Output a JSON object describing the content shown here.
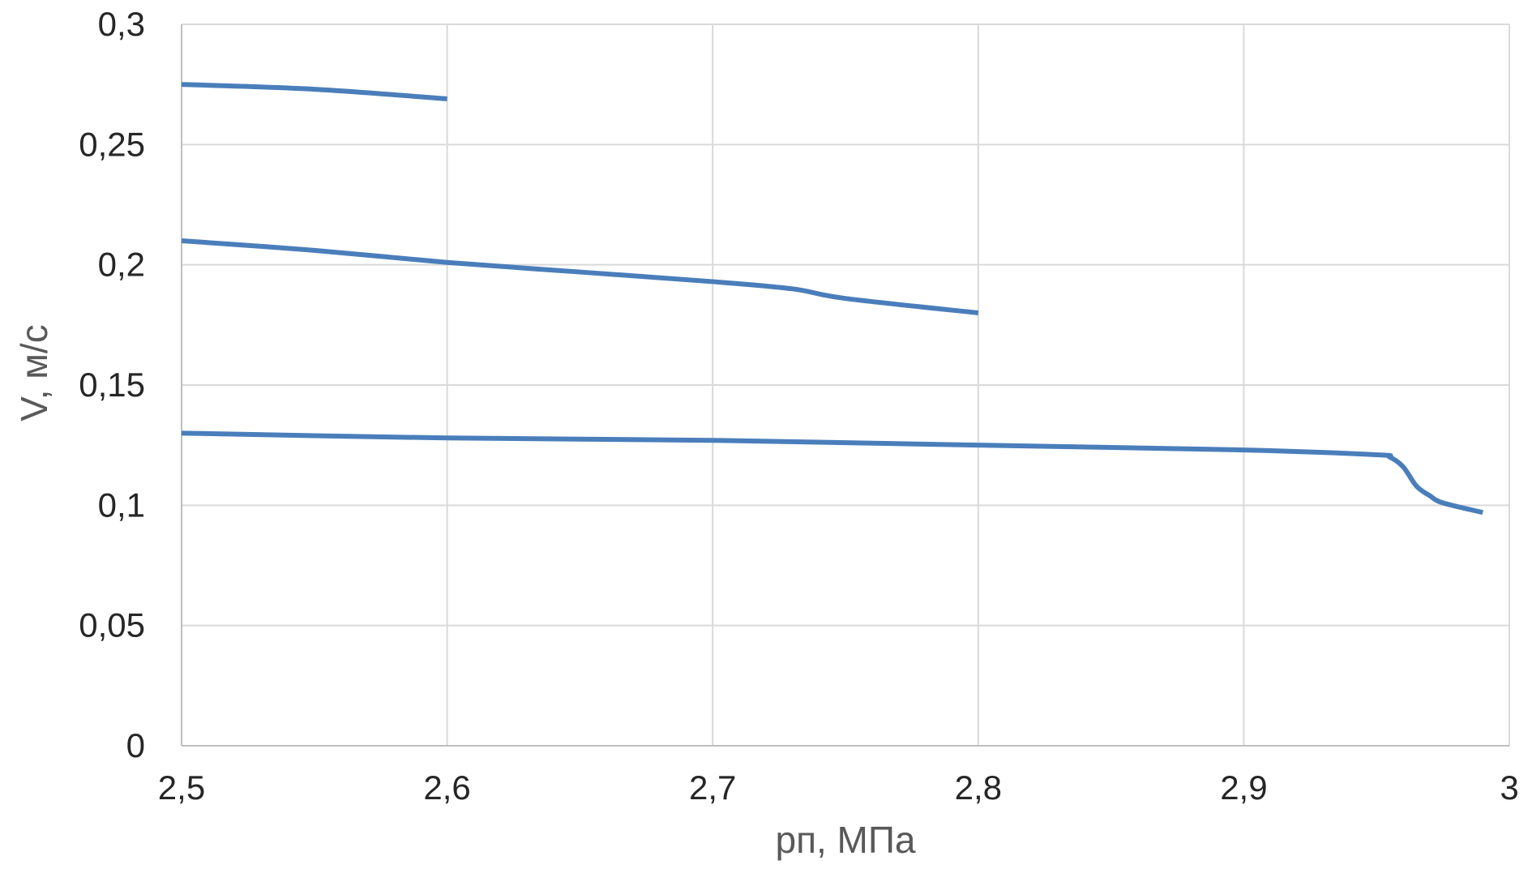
{
  "chart_data": {
    "type": "line",
    "xlabel": "pп, МПа",
    "ylabel": "V, м/с",
    "xlim": [
      2.5,
      3.0
    ],
    "ylim": [
      0,
      0.3
    ],
    "xticks": [
      2.5,
      2.6,
      2.7,
      2.8,
      2.9,
      3.0
    ],
    "yticks": [
      0,
      0.05,
      0.1,
      0.15,
      0.2,
      0.25,
      0.3
    ],
    "xtick_labels": [
      "2,5",
      "2,6",
      "2,7",
      "2,8",
      "2,9",
      "3"
    ],
    "ytick_labels": [
      "0",
      "0,05",
      "0,1",
      "0,15",
      "0,2",
      "0,25",
      "0,3"
    ],
    "grid": true,
    "legend": "none",
    "series": [
      {
        "color": "#4a7ebb",
        "points": [
          [
            2.5,
            0.275
          ],
          [
            2.55,
            0.273
          ],
          [
            2.6,
            0.269
          ]
        ]
      },
      {
        "color": "#4a7ebb",
        "points": [
          [
            2.5,
            0.21
          ],
          [
            2.55,
            0.206
          ],
          [
            2.6,
            0.201
          ],
          [
            2.65,
            0.197
          ],
          [
            2.7,
            0.193
          ],
          [
            2.73,
            0.19
          ],
          [
            2.75,
            0.186
          ],
          [
            2.8,
            0.18
          ]
        ]
      },
      {
        "color": "#4a7ebb",
        "points": [
          [
            2.5,
            0.13
          ],
          [
            2.6,
            0.128
          ],
          [
            2.7,
            0.127
          ],
          [
            2.8,
            0.125
          ],
          [
            2.9,
            0.123
          ],
          [
            2.95,
            0.121
          ],
          [
            2.955,
            0.12
          ],
          [
            2.96,
            0.116
          ],
          [
            2.965,
            0.108
          ],
          [
            2.97,
            0.104
          ],
          [
            2.975,
            0.101
          ],
          [
            2.99,
            0.097
          ]
        ]
      }
    ]
  }
}
